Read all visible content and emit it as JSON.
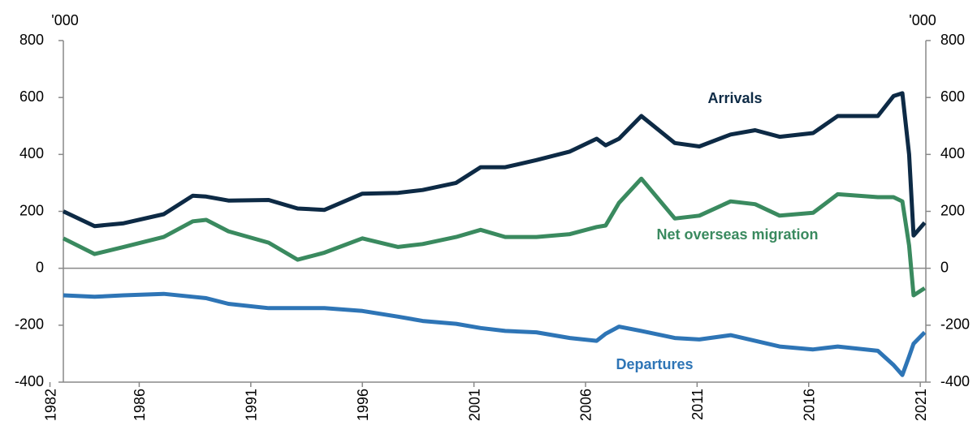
{
  "chart_data": {
    "type": "line",
    "y_label": "'000",
    "y2_label": "'000",
    "x": [
      1982.6,
      1984.0,
      1985.3,
      1987.1,
      1988.4,
      1989.0,
      1990.0,
      1991.8,
      1993.1,
      1994.3,
      1996.0,
      1997.6,
      1998.7,
      2000.2,
      2001.3,
      2002.4,
      2003.8,
      2005.3,
      2006.5,
      2006.9,
      2007.5,
      2008.5,
      2010.0,
      2011.1,
      2012.5,
      2013.6,
      2014.7,
      2016.2,
      2017.3,
      2019.1,
      2019.8,
      2020.2,
      2020.5,
      2020.7,
      2021.2
    ],
    "series": [
      {
        "name": "Arrivals",
        "color": "#0d2a45",
        "values": [
          200,
          148,
          158,
          190,
          255,
          252,
          238,
          240,
          210,
          205,
          262,
          265,
          275,
          300,
          355,
          355,
          380,
          410,
          455,
          432,
          455,
          535,
          440,
          428,
          470,
          485,
          462,
          475,
          535,
          535,
          605,
          615,
          400,
          115,
          160
        ]
      },
      {
        "name": "Net overseas migration",
        "color": "#3a8a5f",
        "values": [
          105,
          50,
          75,
          110,
          165,
          170,
          130,
          90,
          30,
          55,
          105,
          75,
          85,
          110,
          135,
          110,
          110,
          120,
          145,
          150,
          230,
          315,
          175,
          185,
          235,
          225,
          185,
          195,
          260,
          250,
          250,
          235,
          80,
          -95,
          -70
        ]
      },
      {
        "name": "Departures",
        "color": "#2e75b6",
        "values": [
          -95,
          -100,
          -95,
          -90,
          -100,
          -105,
          -125,
          -140,
          -140,
          -140,
          -150,
          -170,
          -185,
          -195,
          -210,
          -220,
          -225,
          -245,
          -255,
          -230,
          -205,
          -220,
          -245,
          -250,
          -235,
          -255,
          -275,
          -285,
          -275,
          -290,
          -340,
          -375,
          -310,
          -265,
          -225
        ]
      }
    ],
    "xlim": [
      1982.6,
      2021.25
    ],
    "xticks": [
      1982,
      1986,
      1991,
      1996,
      2001,
      2006,
      2011,
      2016,
      2021
    ],
    "ylim": [
      -400,
      800
    ],
    "yticks": [
      -400,
      -200,
      0,
      200,
      400,
      600,
      800
    ],
    "y2lim": [
      -400,
      800
    ],
    "y2ticks": [
      -400,
      -200,
      0,
      200,
      400,
      600,
      800
    ]
  }
}
